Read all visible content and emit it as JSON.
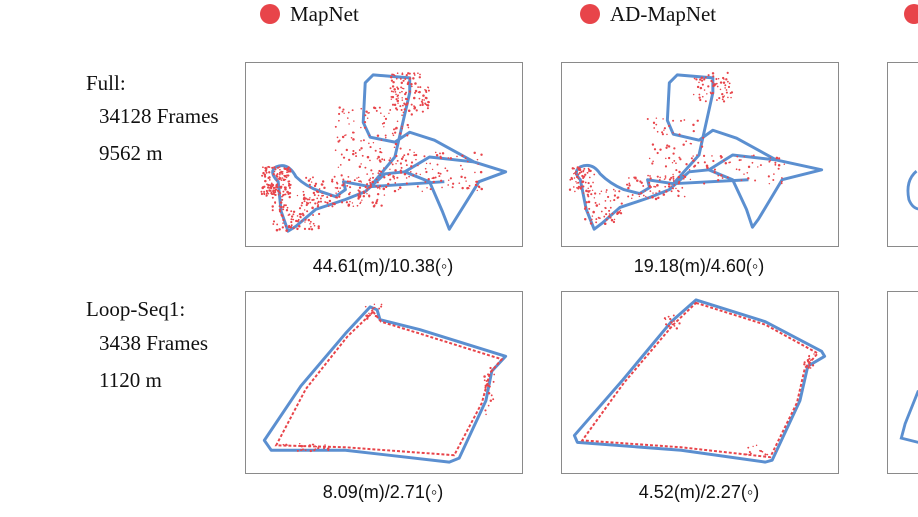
{
  "colors": {
    "estimate": "#e8444a",
    "ground_truth": "#5b8fd0",
    "frame": "#8a8a8a"
  },
  "legend": [
    {
      "label": "MapNet",
      "color": "#e8444a"
    },
    {
      "label": "AD-MapNet",
      "color": "#e8444a"
    }
  ],
  "rows": [
    {
      "name": "Full:",
      "frames": "34128 Frames",
      "distance": "9562 m",
      "results": [
        "44.61(m)/10.38(◦)",
        "19.18(m)/4.60(◦)"
      ]
    },
    {
      "name": "Loop-Seq1:",
      "frames": "3438 Frames",
      "distance": "1120 m",
      "results": [
        "8.09(m)/2.71(◦)",
        "4.52(m)/2.27(◦)"
      ]
    }
  ]
}
